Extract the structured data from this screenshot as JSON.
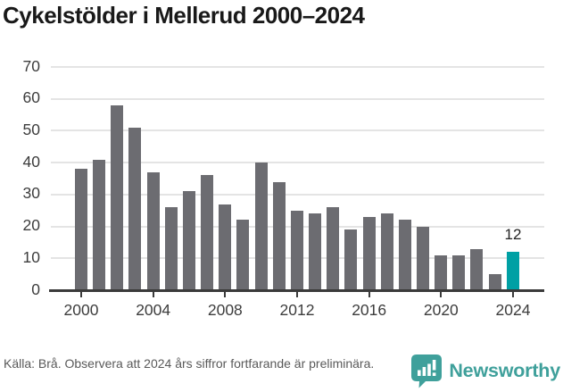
{
  "title": "Cykelstölder i Mellerud 2000–2024",
  "chart_data": {
    "type": "bar",
    "title": "Cykelstölder i Mellerud 2000–2024",
    "categories": [
      2000,
      2001,
      2002,
      2003,
      2004,
      2005,
      2006,
      2007,
      2008,
      2009,
      2010,
      2011,
      2012,
      2013,
      2014,
      2015,
      2016,
      2017,
      2018,
      2019,
      2020,
      2021,
      2022,
      2023,
      2024
    ],
    "values": [
      38,
      41,
      58,
      51,
      37,
      26,
      31,
      36,
      27,
      22,
      40,
      34,
      25,
      24,
      26,
      19,
      23,
      24,
      22,
      20,
      11,
      11,
      13,
      5,
      12
    ],
    "highlight": {
      "year": 2024,
      "value": 12,
      "label": "12"
    },
    "annotation_label": "12",
    "xlabel": "",
    "ylabel": "",
    "ylim": [
      0,
      70
    ],
    "yticks": [
      0,
      10,
      20,
      30,
      40,
      50,
      60,
      70
    ],
    "xtick_years": [
      2000,
      2004,
      2008,
      2012,
      2016,
      2020,
      2024
    ],
    "grid": true,
    "legend_position": "none"
  },
  "footer": {
    "source_text": "Källa: Brå. Observera att 2024 års siffror fortfarande är preliminära.",
    "brand_name": "Newsworthy"
  },
  "colors": {
    "background": "#ffffff",
    "title": "#191919",
    "bar": "#6c6c71",
    "highlight_bar": "#00a0a4",
    "gridline": "#e4e4e4",
    "axis": "#3a3a3a",
    "tick_label": "#3d3d3d",
    "annotation": "#232323",
    "source_text": "#595959",
    "brand_teal": "#3fa09b"
  }
}
